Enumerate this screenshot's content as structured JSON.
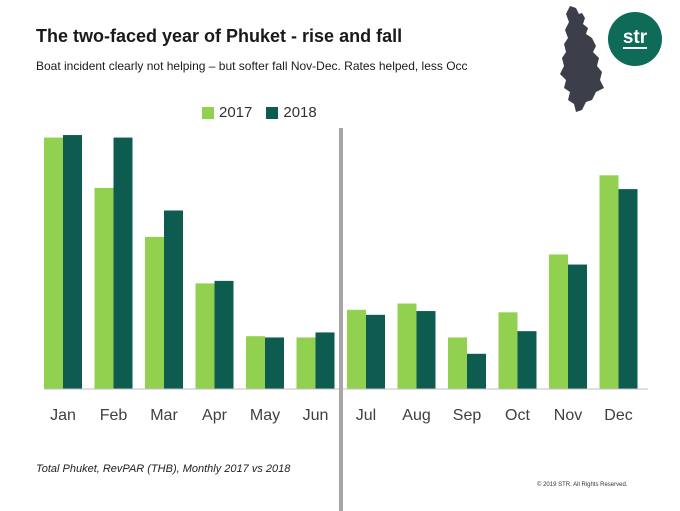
{
  "header": {
    "title": "The two-faced year of Phuket - rise and fall",
    "subtitle": "Boat incident clearly not helping – but softer fall Nov-Dec. Rates helped, less Occ"
  },
  "footer": {
    "note": "Total Phuket, RevPAR (THB), Monthly 2017 vs 2018",
    "copyright": "© 2019  STR. All Rights Reserved."
  },
  "logo": {
    "text": "str",
    "color": "#0d6b58"
  },
  "colors": {
    "s2017": "#92d050",
    "s2018": "#0d5c4f",
    "axis": "#a6a6a6"
  },
  "chart_data": {
    "type": "bar",
    "categories": [
      "Jan",
      "Feb",
      "Mar",
      "Apr",
      "May",
      "Jun",
      "Jul",
      "Aug",
      "Sep",
      "Oct",
      "Nov",
      "Dec"
    ],
    "series": [
      {
        "name": "2017",
        "values": [
          100,
          80,
          60.5,
          42,
          21,
          20.5,
          31.5,
          34,
          20.5,
          30.5,
          53.5,
          85
        ]
      },
      {
        "name": "2018",
        "values": [
          101,
          100,
          71,
          43,
          20.5,
          22.5,
          29.5,
          31,
          14,
          23,
          49.5,
          79.5
        ]
      }
    ],
    "ylim": [
      0,
      105
    ],
    "grid": false,
    "legend_position": "top-center"
  }
}
